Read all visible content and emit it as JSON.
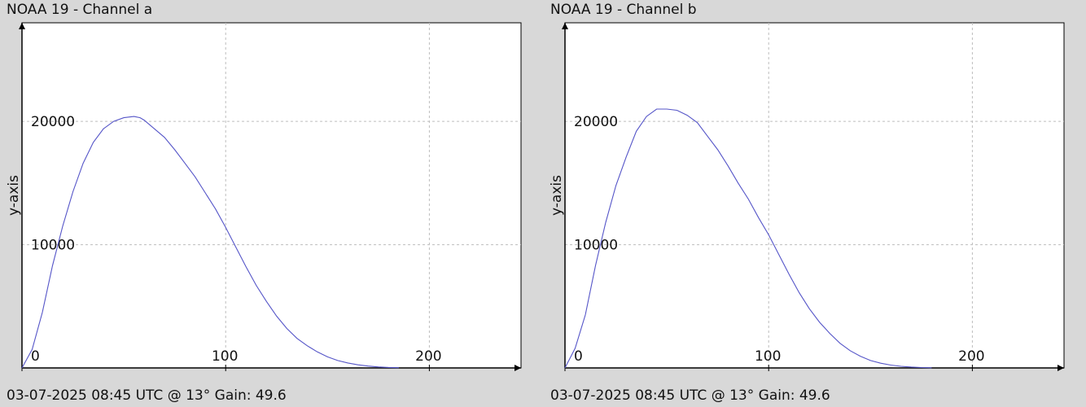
{
  "panels": [
    {
      "title": "NOAA 19 - Channel a",
      "footer": "03-07-2025 08:45 UTC @ 13° Gain: 49.6"
    },
    {
      "title": "NOAA 19 - Channel b",
      "footer": "03-07-2025 08:45 UTC @ 13° Gain: 49.6"
    }
  ],
  "chart_data": [
    {
      "type": "line",
      "title": "NOAA 19 - Channel a",
      "xlabel": "",
      "ylabel": "y-axis",
      "xlim": [
        0,
        245
      ],
      "ylim": [
        0,
        28000
      ],
      "xticks": [
        0,
        100,
        200
      ],
      "yticks": [
        10000,
        20000
      ],
      "grid": true,
      "series": [
        {
          "color": "#5555c8",
          "x": [
            0,
            5,
            10,
            15,
            20,
            25,
            30,
            35,
            40,
            45,
            50,
            55,
            58,
            60,
            65,
            70,
            75,
            80,
            85,
            90,
            95,
            100,
            105,
            110,
            115,
            120,
            125,
            130,
            135,
            140,
            145,
            150,
            155,
            160,
            165,
            170,
            175,
            180,
            185
          ],
          "y": [
            0,
            1500,
            4500,
            8300,
            11500,
            14300,
            16600,
            18300,
            19400,
            20000,
            20300,
            20400,
            20300,
            20100,
            19400,
            18700,
            17700,
            16600,
            15500,
            14200,
            12900,
            11400,
            9800,
            8200,
            6700,
            5400,
            4200,
            3200,
            2400,
            1800,
            1300,
            900,
            600,
            400,
            250,
            150,
            80,
            40,
            20
          ]
        }
      ]
    },
    {
      "type": "line",
      "title": "NOAA 19 - Channel b",
      "xlabel": "",
      "ylabel": "y-axis",
      "xlim": [
        0,
        245
      ],
      "ylim": [
        0,
        28000
      ],
      "xticks": [
        0,
        100,
        200
      ],
      "yticks": [
        10000,
        20000
      ],
      "grid": true,
      "series": [
        {
          "color": "#5555c8",
          "x": [
            0,
            5,
            10,
            15,
            20,
            25,
            30,
            35,
            40,
            45,
            50,
            55,
            60,
            65,
            70,
            75,
            80,
            85,
            90,
            95,
            100,
            105,
            110,
            115,
            120,
            125,
            130,
            135,
            140,
            145,
            150,
            155,
            160,
            165,
            170,
            175,
            180
          ],
          "y": [
            0,
            1600,
            4300,
            8300,
            11800,
            14800,
            17100,
            19200,
            20400,
            21000,
            21000,
            20900,
            20500,
            19900,
            18800,
            17700,
            16400,
            15000,
            13700,
            12200,
            10800,
            9200,
            7600,
            6100,
            4800,
            3700,
            2800,
            2000,
            1400,
            950,
            600,
            380,
            230,
            130,
            70,
            30,
            10
          ]
        }
      ]
    }
  ]
}
